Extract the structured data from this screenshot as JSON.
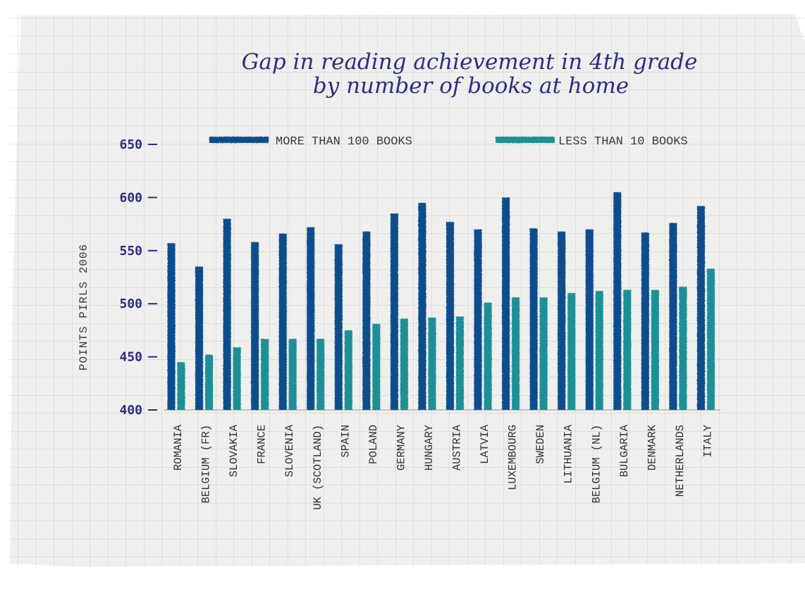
{
  "chart_data": {
    "type": "bar",
    "title_lines": [
      "Gap in reading achievement in 4th grade",
      "by number of books at home"
    ],
    "ylabel": "POINTS PIRLS 2006",
    "ylim": [
      400,
      650
    ],
    "yticks": [
      400,
      450,
      500,
      550,
      600,
      650
    ],
    "grid": true,
    "legend_position": "top",
    "categories": [
      "ROMANIA",
      "BELGIUM (FR)",
      "SLOVAKIA",
      "FRANCE",
      "SLOVENIA",
      "UK (SCOTLAND)",
      "SPAIN",
      "POLAND",
      "GERMANY",
      "HUNGARY",
      "AUSTRIA",
      "LATVIA",
      "LUXEMBOURG",
      "SWEDEN",
      "LITHUANIA",
      "BELGIUM (NL)",
      "BULGARIA",
      "DENMARK",
      "NETHERLANDS",
      "ITALY"
    ],
    "series": [
      {
        "name": "MORE THAN 100 BOOKS",
        "color": "#0c4e8c",
        "values": [
          557,
          535,
          580,
          558,
          566,
          572,
          556,
          568,
          585,
          595,
          577,
          570,
          600,
          571,
          568,
          570,
          605,
          567,
          576,
          592
        ]
      },
      {
        "name": "LESS THAN 10 BOOKS",
        "color": "#1f9096",
        "values": [
          445,
          452,
          459,
          467,
          467,
          467,
          475,
          481,
          486,
          487,
          488,
          501,
          506,
          506,
          510,
          512,
          513,
          513,
          516,
          533
        ]
      }
    ]
  }
}
